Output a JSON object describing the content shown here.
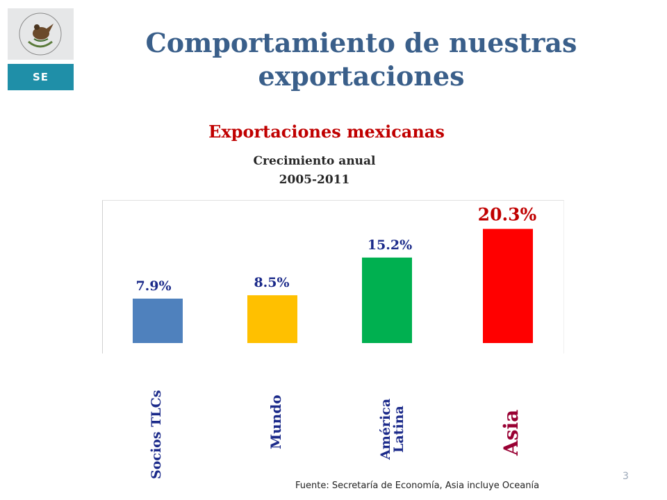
{
  "header": {
    "title": "Comportamiento de nuestras exportaciones",
    "logo_text": "SE"
  },
  "chart_data": {
    "type": "bar",
    "title": "Exportaciones mexicanas",
    "subtitle_lines": [
      "Crecimiento anual",
      "2005-2011"
    ],
    "categories": [
      "Socios TLCs",
      "Mundo",
      "América Latina",
      "Asia"
    ],
    "values": [
      7.9,
      8.5,
      15.2,
      20.3
    ],
    "value_labels": [
      "7.9%",
      "8.5%",
      "15.2%",
      "20.3%"
    ],
    "colors": [
      "#4f81bd",
      "#ffc000",
      "#00b050",
      "#ff0000"
    ],
    "value_label_colors": [
      "#1b2a8a",
      "#1b2a8a",
      "#1b2a8a",
      "#c00000"
    ],
    "ylim": [
      0,
      24
    ],
    "grid": false,
    "legend": "none"
  },
  "category_labels": {
    "c0": "Socios TLCs",
    "c1": "Mundo",
    "c2_line1": "América",
    "c2_line2": "Latina",
    "c3": "Asia"
  },
  "footer": {
    "source": "Fuente: Secretaría de Economía, Asia incluye Oceanía",
    "page_number": "3"
  }
}
